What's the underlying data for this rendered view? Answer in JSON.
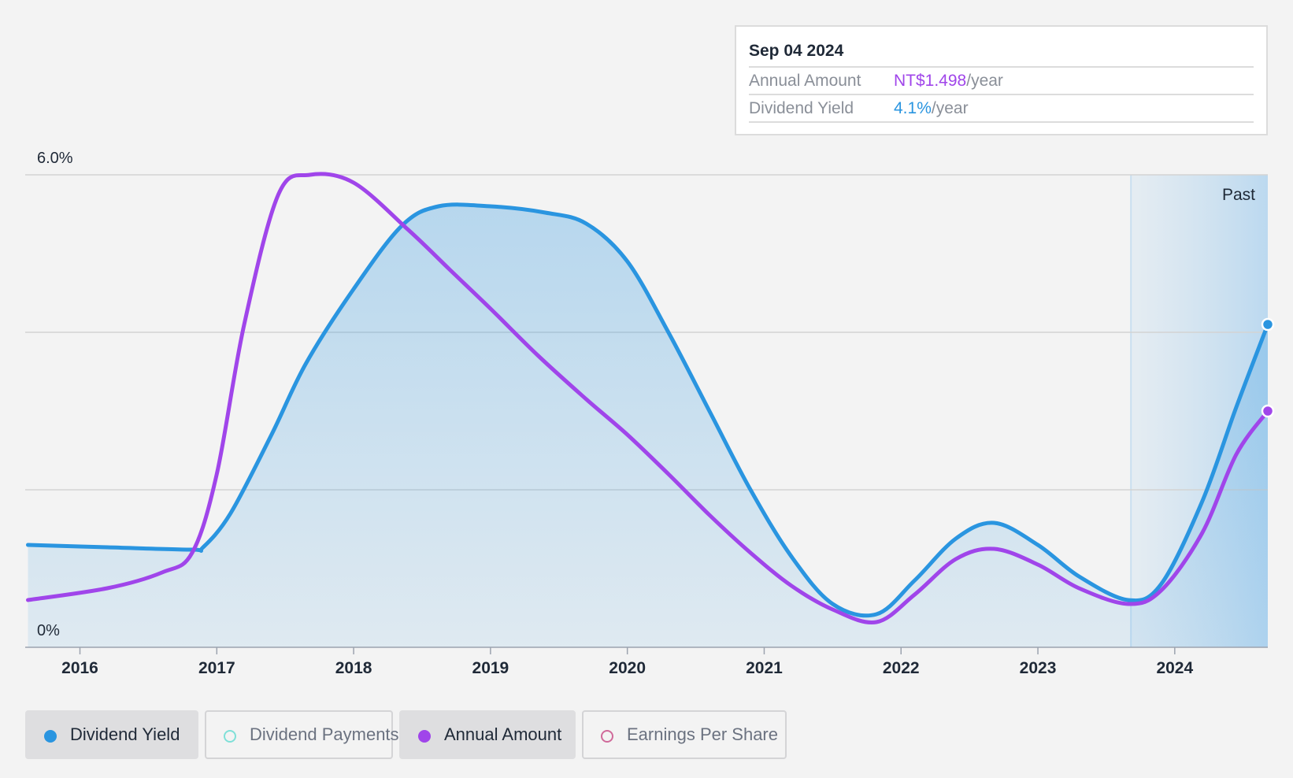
{
  "tooltip": {
    "date": "Sep 04 2024",
    "annual_amount_label": "Annual Amount",
    "annual_amount_value": "NT$1.498",
    "dividend_yield_label": "Dividend Yield",
    "dividend_yield_value": "4.1%",
    "per_year": "/year"
  },
  "chart_data": {
    "type": "area",
    "y_tick_labels": [
      "6.0%",
      "0%"
    ],
    "ylim": [
      0,
      6.0
    ],
    "y_gridlines": [
      2.0,
      4.0,
      6.0
    ],
    "xlim": [
      2015.6,
      2024.68
    ],
    "x_ticks": [
      2016,
      2017,
      2018,
      2019,
      2020,
      2021,
      2022,
      2023,
      2024
    ],
    "x_tick_labels": [
      "2016",
      "2017",
      "2018",
      "2019",
      "2020",
      "2021",
      "2022",
      "2023",
      "2024"
    ],
    "past_region_start": 2023.68,
    "past_label": "Past",
    "grid": true,
    "series": [
      {
        "name": "Dividend Yield",
        "color": "#2a95e0",
        "filled": true,
        "x": [
          2015.62,
          2016.2,
          2016.82,
          2016.9,
          2017.1,
          2017.4,
          2017.65,
          2018.0,
          2018.35,
          2018.62,
          2019.0,
          2019.4,
          2019.7,
          2020.0,
          2020.3,
          2020.6,
          2020.9,
          2021.2,
          2021.5,
          2021.82,
          2022.1,
          2022.4,
          2022.68,
          2023.0,
          2023.3,
          2023.66,
          2023.9,
          2024.2,
          2024.45,
          2024.68
        ],
        "y": [
          1.3,
          1.27,
          1.24,
          1.27,
          1.7,
          2.7,
          3.6,
          4.55,
          5.35,
          5.6,
          5.6,
          5.52,
          5.38,
          4.9,
          4.0,
          3.0,
          2.0,
          1.15,
          0.55,
          0.42,
          0.85,
          1.38,
          1.58,
          1.3,
          0.9,
          0.6,
          0.8,
          1.85,
          3.05,
          4.1
        ]
      },
      {
        "name": "Annual Amount",
        "color": "#a045ea",
        "filled": false,
        "x": [
          2015.62,
          2016.2,
          2016.6,
          2016.82,
          2017.0,
          2017.2,
          2017.45,
          2017.68,
          2018.0,
          2018.4,
          2018.7,
          2019.0,
          2019.35,
          2019.7,
          2020.0,
          2020.3,
          2020.6,
          2020.9,
          2021.2,
          2021.5,
          2021.82,
          2022.1,
          2022.4,
          2022.68,
          2023.0,
          2023.3,
          2023.66,
          2023.9,
          2024.2,
          2024.45,
          2024.68
        ],
        "y": [
          0.6,
          0.75,
          0.95,
          1.2,
          2.2,
          4.1,
          5.75,
          6.0,
          5.9,
          5.3,
          4.8,
          4.3,
          3.7,
          3.15,
          2.7,
          2.2,
          1.68,
          1.2,
          0.78,
          0.48,
          0.32,
          0.67,
          1.12,
          1.25,
          1.05,
          0.75,
          0.55,
          0.72,
          1.45,
          2.45,
          3.0
        ]
      }
    ]
  },
  "legend": [
    {
      "label": "Dividend Yield",
      "color": "#2a95e0",
      "active": true
    },
    {
      "label": "Dividend Payments",
      "color": "#7fe0d8",
      "active": false
    },
    {
      "label": "Annual Amount",
      "color": "#a045ea",
      "active": true
    },
    {
      "label": "Earnings Per Share",
      "color": "#d06a9a",
      "active": false
    }
  ]
}
